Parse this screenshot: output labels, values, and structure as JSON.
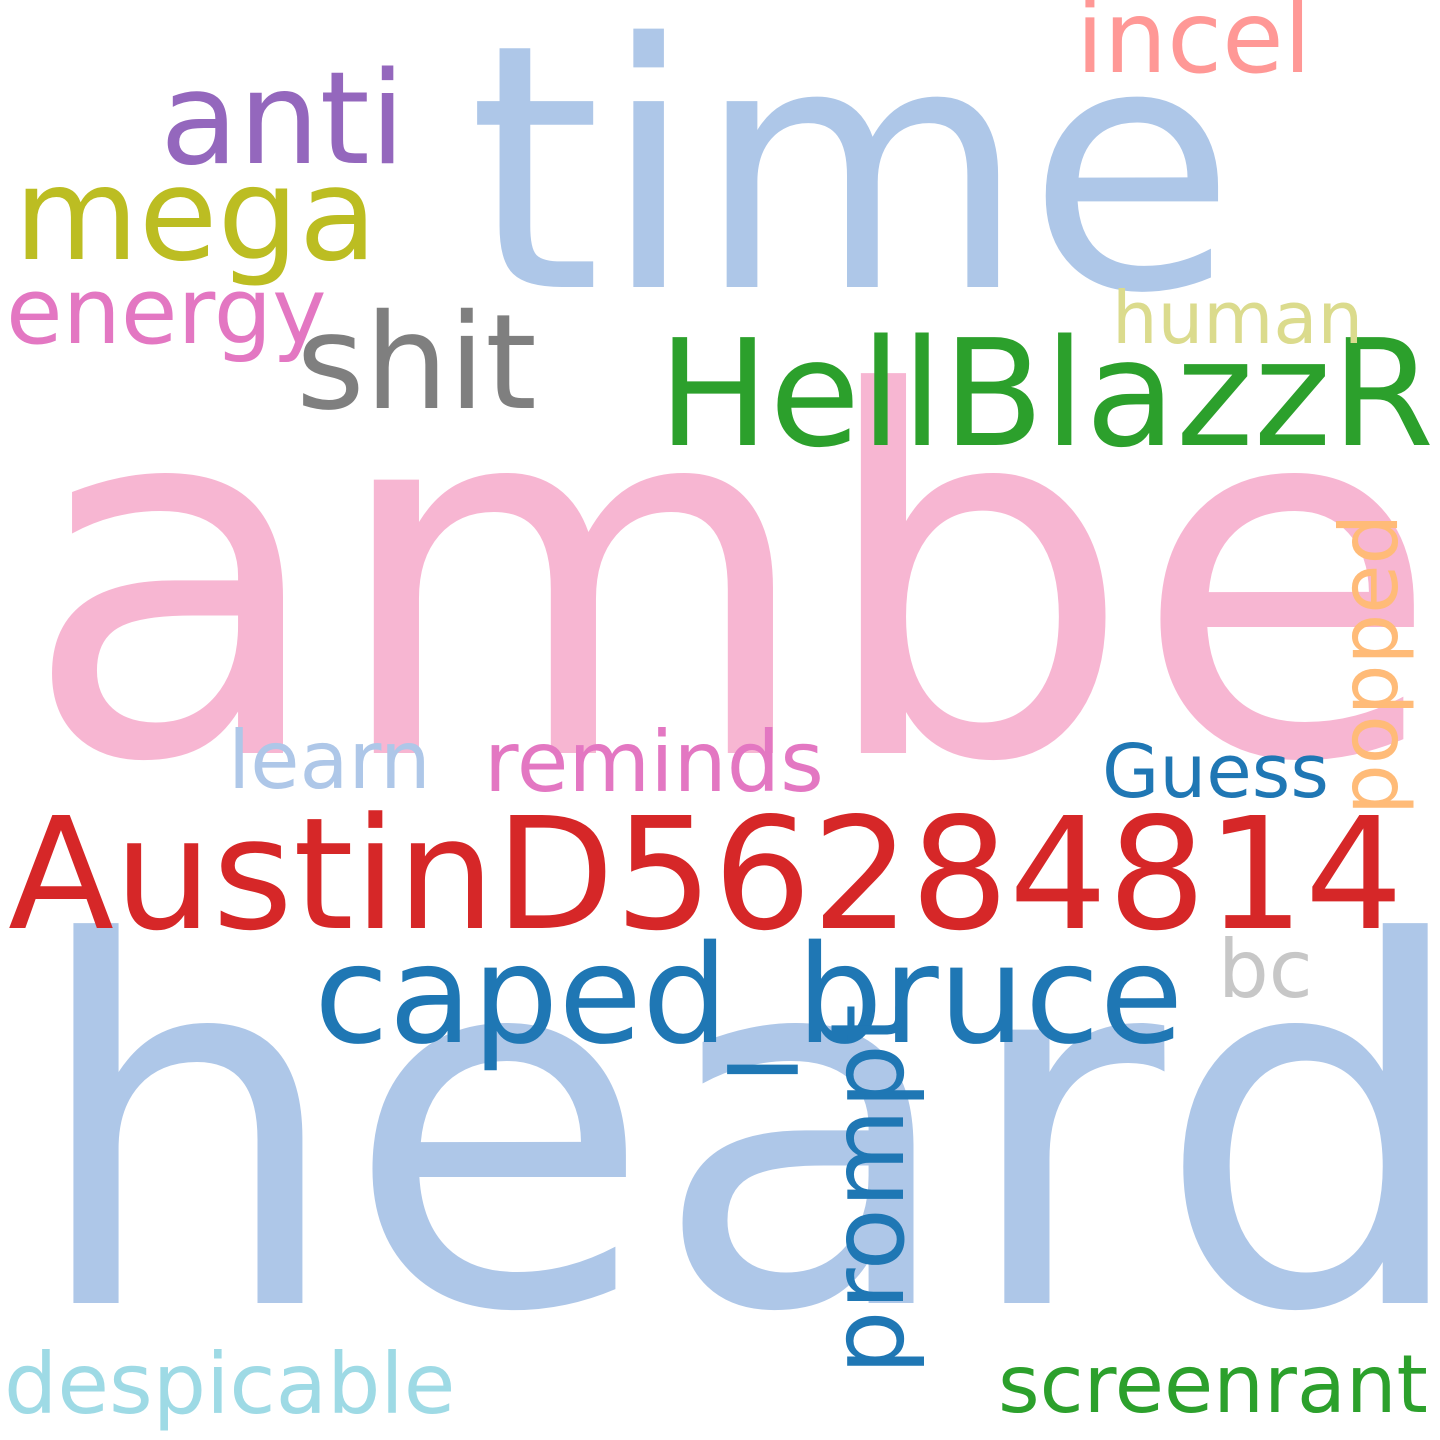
{
  "cloud": {
    "words": [
      {
        "key": "amber",
        "text": "amber",
        "color": "#f7b6d2"
      },
      {
        "key": "heard",
        "text": "heard",
        "color": "#aec7e8"
      },
      {
        "key": "time",
        "text": "time",
        "color": "#aec7e8"
      },
      {
        "key": "AustinD56284814",
        "text": "AustinD56284814",
        "color": "#d62728"
      },
      {
        "key": "HellBlazzR",
        "text": "HellBlazzR",
        "color": "#2ca02c"
      },
      {
        "key": "caped_bruce",
        "text": "caped_bruce",
        "color": "#1f77b4"
      },
      {
        "key": "shit",
        "text": "shit",
        "color": "#7f7f7f"
      },
      {
        "key": "anti",
        "text": "anti",
        "color": "#9467bd"
      },
      {
        "key": "mega",
        "text": "mega",
        "color": "#bcbd22"
      },
      {
        "key": "incel",
        "text": "incel",
        "color": "#ff9896"
      },
      {
        "key": "energy",
        "text": "energy",
        "color": "#e377c2"
      },
      {
        "key": "human",
        "text": "human",
        "color": "#dbdb8d"
      },
      {
        "key": "popped",
        "text": "popped",
        "color": "#ffbb78"
      },
      {
        "key": "reminds",
        "text": "reminds",
        "color": "#e377c2"
      },
      {
        "key": "learn",
        "text": "learn",
        "color": "#aec7e8"
      },
      {
        "key": "Guess",
        "text": "Guess",
        "color": "#1f77b4"
      },
      {
        "key": "bc",
        "text": "bc",
        "color": "#c7c7c7"
      },
      {
        "key": "prompt",
        "text": "prompt",
        "color": "#1f77b4"
      },
      {
        "key": "despicable",
        "text": "despicable",
        "color": "#9edae5"
      },
      {
        "key": "screenrant",
        "text": "screenrant",
        "color": "#2ca02c"
      }
    ]
  }
}
